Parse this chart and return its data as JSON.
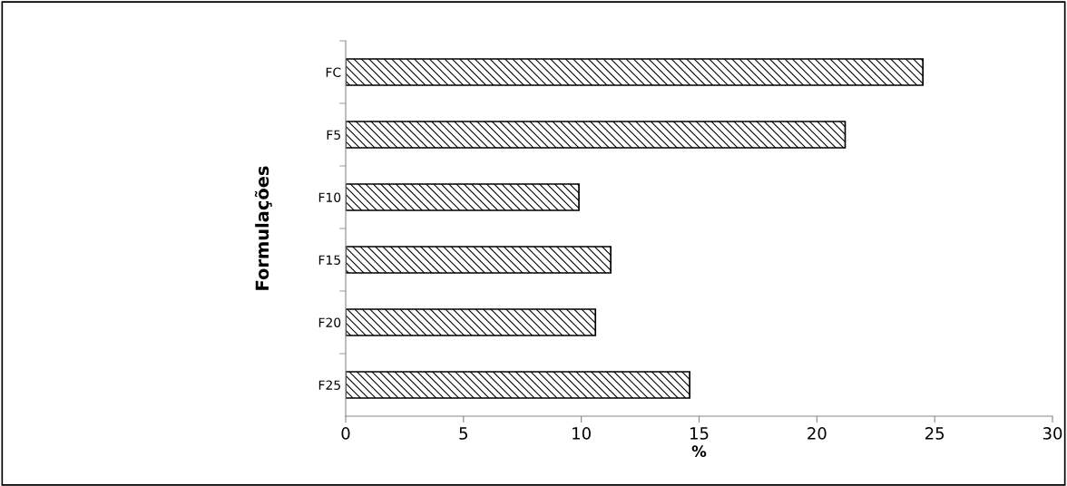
{
  "chart_data": {
    "type": "bar",
    "orientation": "horizontal",
    "xlabel": "%",
    "ylabel": "Formulações",
    "categories": [
      "FC",
      "F5",
      "F10",
      "F15",
      "F20",
      "F25"
    ],
    "values": [
      24.5,
      21.2,
      9.9,
      11.25,
      10.6,
      14.6
    ],
    "color": "#000000",
    "xlim": [
      0,
      30
    ],
    "xticks": [
      0,
      5,
      10,
      15,
      20,
      25,
      30
    ],
    "grid": false,
    "legend": false
  }
}
